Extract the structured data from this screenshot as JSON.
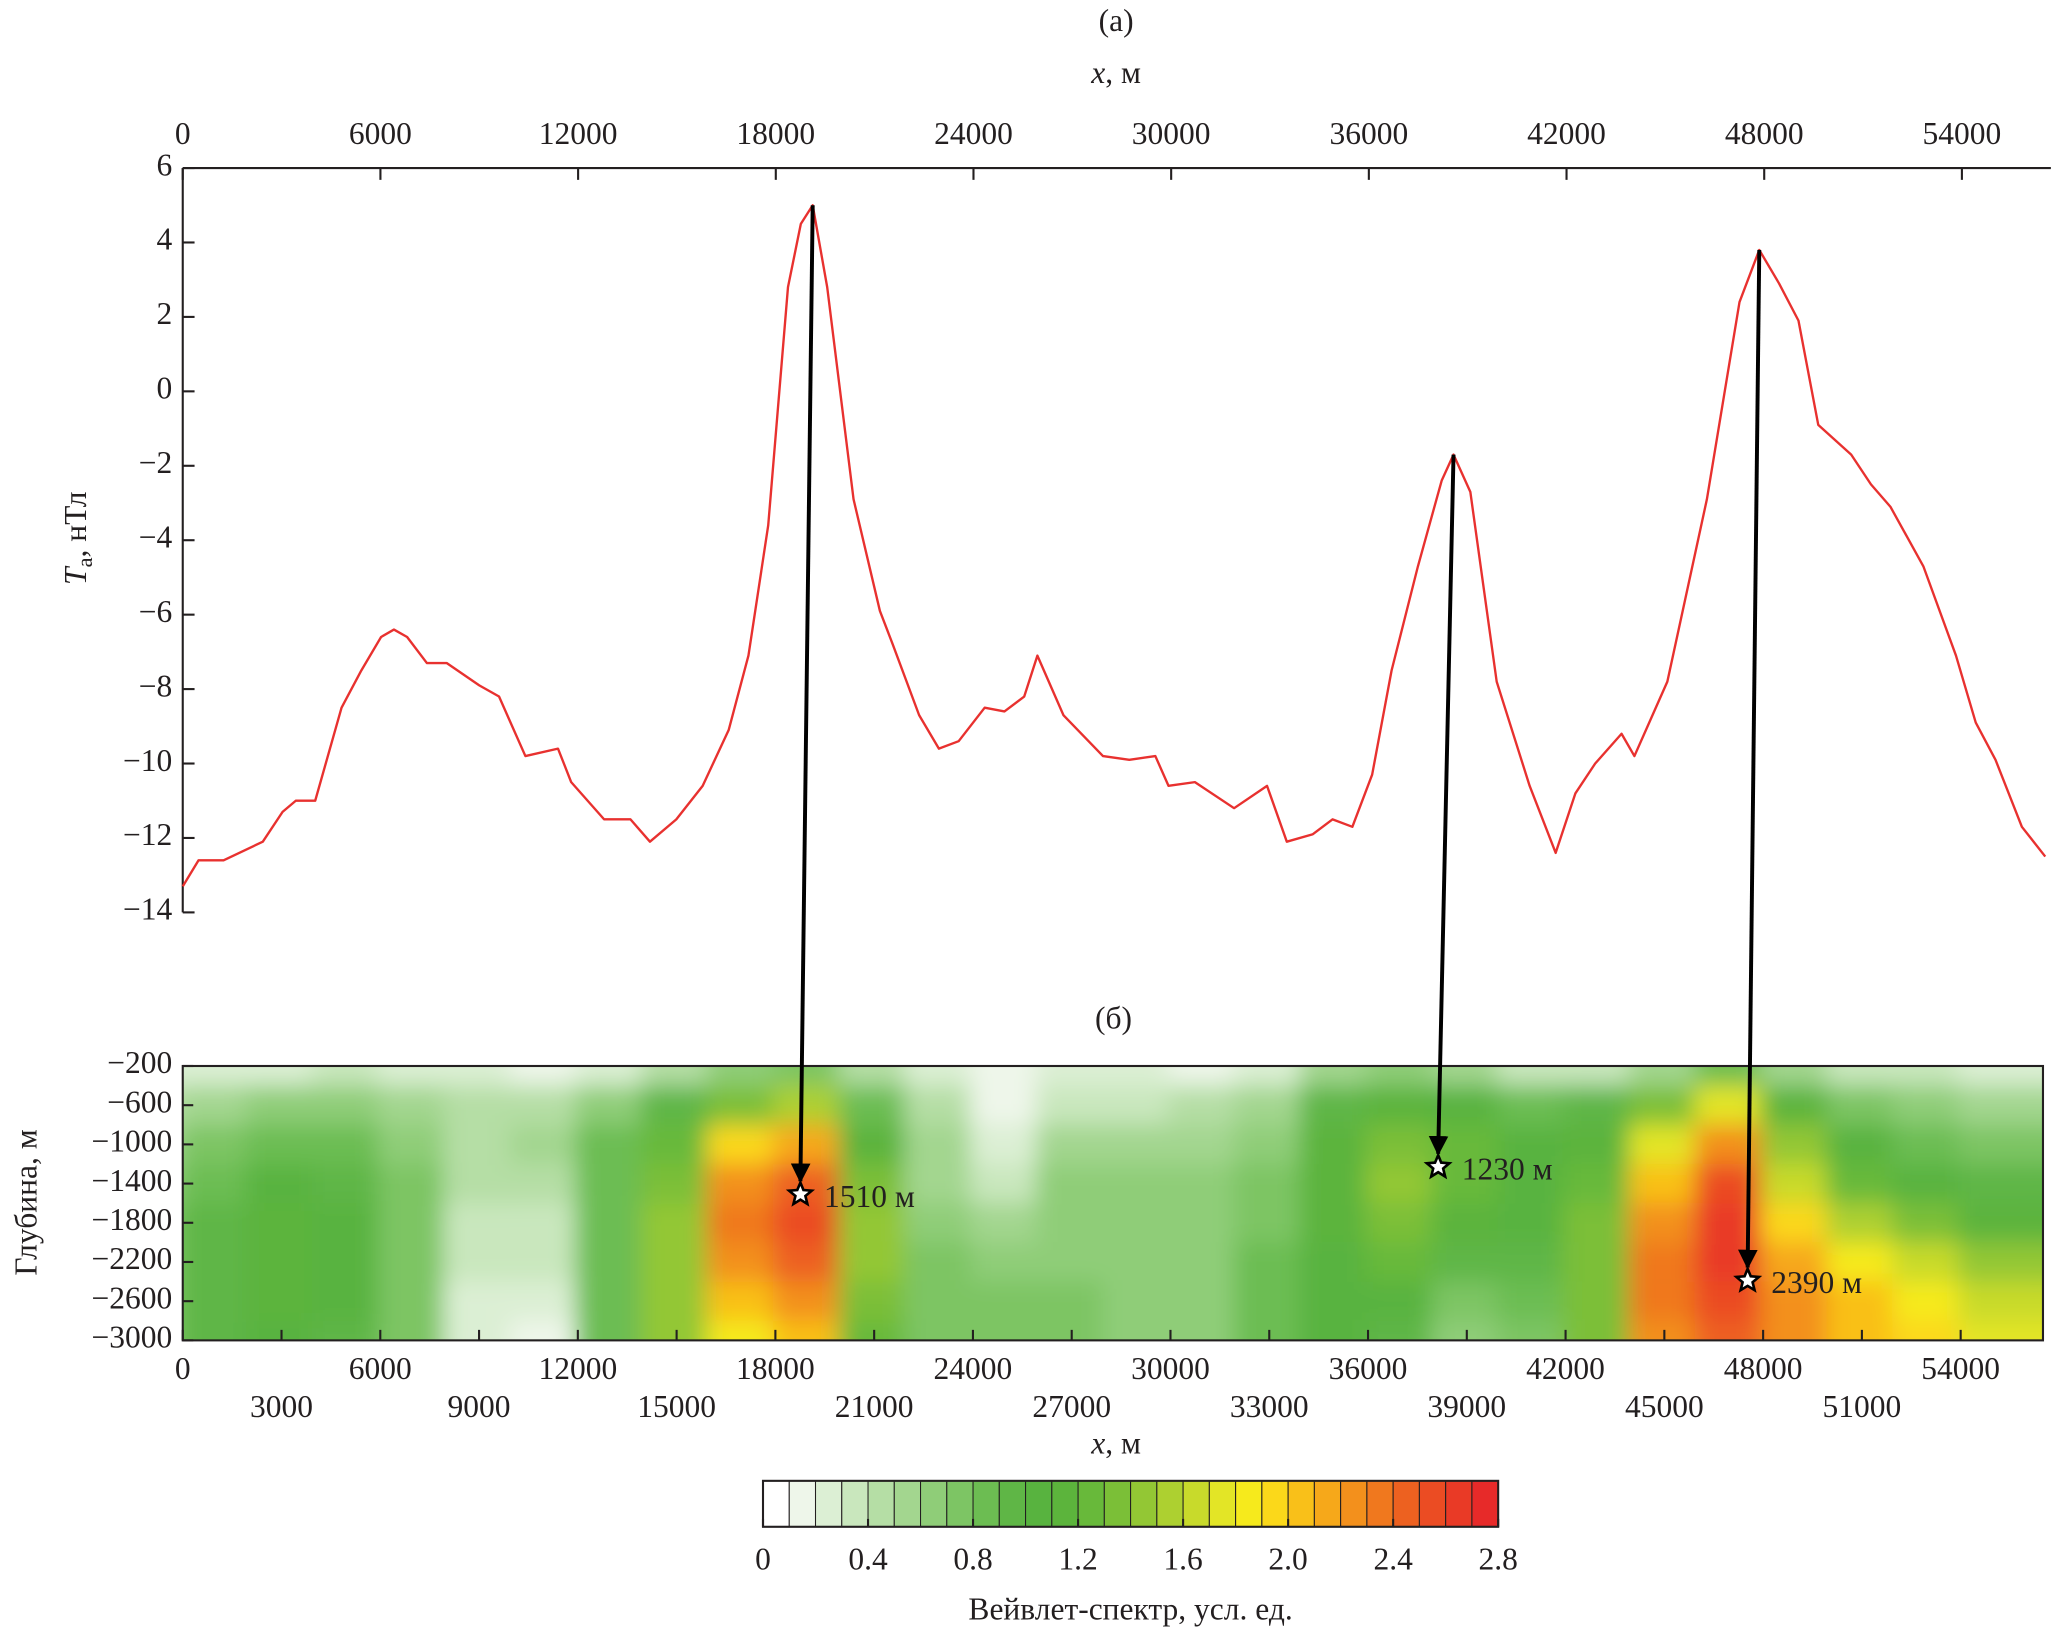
{
  "chart_data": [
    {
      "type": "line",
      "title": "(а)",
      "xlabel": [
        "x",
        ", м"
      ],
      "ylabel": [
        "T",
        "а",
        ", нТл"
      ],
      "color": "#e8312f",
      "xlim": [
        0,
        56700
      ],
      "ylim": [
        -14,
        6
      ],
      "xticks": [
        0,
        6000,
        12000,
        18000,
        24000,
        30000,
        36000,
        42000,
        48000,
        54000
      ],
      "yticks": [
        6,
        4,
        2,
        0,
        {
          "value": -2,
          "label": "−2"
        },
        {
          "value": -4,
          "label": "−4"
        },
        {
          "value": -6,
          "label": "−6"
        },
        {
          "value": -8,
          "label": "−8"
        },
        {
          "value": -10,
          "label": "−10"
        },
        {
          "value": -12,
          "label": "−12"
        },
        {
          "value": -14,
          "label": "−14"
        }
      ],
      "x": [
        0,
        480,
        1240,
        2430,
        3030,
        3430,
        4020,
        4820,
        5420,
        6020,
        6410,
        6810,
        7410,
        8010,
        9000,
        9600,
        10400,
        11390,
        11790,
        12790,
        13590,
        14180,
        14980,
        15780,
        16570,
        17170,
        17770,
        18370,
        18760,
        19120,
        19560,
        20360,
        21160,
        21550,
        22350,
        22950,
        23550,
        24340,
        24940,
        25540,
        25940,
        26730,
        27930,
        28730,
        29520,
        29920,
        30720,
        31910,
        32910,
        33510,
        34300,
        34900,
        35500,
        36100,
        36690,
        37490,
        38210,
        38570,
        39080,
        39880,
        40880,
        41670,
        42270,
        42870,
        43670,
        44060,
        45060,
        46260,
        47250,
        47850,
        48450,
        49040,
        49640,
        50640,
        51240,
        51830,
        52830,
        53820,
        54420,
        55020,
        55820,
        56530
      ],
      "values": [
        -13.3,
        -12.6,
        -12.6,
        -12.1,
        -11.3,
        -11.0,
        -11.0,
        -8.5,
        -7.5,
        -6.6,
        -6.4,
        -6.6,
        -7.3,
        -7.3,
        -7.9,
        -8.2,
        -9.8,
        -9.6,
        -10.5,
        -11.5,
        -11.5,
        -12.1,
        -11.5,
        -10.6,
        -9.1,
        -7.1,
        -3.6,
        2.8,
        4.5,
        5.0,
        2.8,
        -2.9,
        -5.9,
        -6.8,
        -8.7,
        -9.6,
        -9.4,
        -8.5,
        -8.6,
        -8.2,
        -7.1,
        -8.7,
        -9.8,
        -9.9,
        -9.8,
        -10.6,
        -10.5,
        -11.2,
        -10.6,
        -12.1,
        -11.9,
        -11.5,
        -11.7,
        -10.3,
        -7.5,
        -4.7,
        -2.4,
        -1.7,
        -2.7,
        -7.8,
        -10.6,
        -12.4,
        -10.8,
        -10.0,
        -9.2,
        -9.8,
        -7.8,
        -2.9,
        2.4,
        3.8,
        2.9,
        1.9,
        -0.9,
        -1.7,
        -2.5,
        -3.1,
        -4.7,
        -7.1,
        -8.9,
        -9.9,
        -11.7,
        -12.5
      ]
    },
    {
      "type": "heatmap",
      "title": "(б)",
      "xlabel": [
        "x",
        ", м"
      ],
      "ylabel": "Глубина, м",
      "xlim": [
        0,
        56500
      ],
      "ylim": [
        -3000,
        -200
      ],
      "xticks": [
        0,
        3000,
        6000,
        9000,
        12000,
        15000,
        18000,
        21000,
        24000,
        27000,
        30000,
        33000,
        36000,
        39000,
        42000,
        45000,
        48000,
        51000,
        54000
      ],
      "yticks": [
        {
          "value": -200,
          "label": "−200"
        },
        {
          "value": -600,
          "label": "−600"
        },
        {
          "value": -1000,
          "label": "−1000"
        },
        {
          "value": -1400,
          "label": "−1400"
        },
        {
          "value": -1800,
          "label": "−1800"
        },
        {
          "value": -2200,
          "label": "−2200"
        },
        {
          "value": -2600,
          "label": "−2600"
        },
        {
          "value": -3000,
          "label": "−3000"
        }
      ],
      "x": [
        0,
        2000,
        4000,
        6000,
        8000,
        10000,
        12000,
        14000,
        16000,
        18000,
        20000,
        22000,
        24000,
        26000,
        28000,
        30000,
        32000,
        34000,
        36000,
        38000,
        40000,
        42000,
        44000,
        46000,
        48000,
        50000,
        52000,
        54000,
        56000
      ],
      "y": [
        -200,
        -600,
        -1000,
        -1400,
        -1800,
        -2200,
        -2600,
        -3000
      ],
      "z": [
        [
          0.2,
          0.2,
          0.2,
          0.3,
          0.2,
          0.2,
          0.1,
          0.2,
          0.4,
          0.6,
          0.7,
          0.4,
          0.2,
          0.1,
          0.2,
          0.2,
          0.1,
          0.2,
          0.5,
          0.6,
          0.5,
          0.3,
          0.3,
          0.5,
          0.8,
          0.5,
          0.3,
          0.3,
          0.2
        ],
        [
          0.4,
          0.5,
          0.6,
          0.6,
          0.5,
          0.4,
          0.4,
          0.6,
          0.9,
          1.3,
          1.5,
          0.8,
          0.4,
          0.1,
          0.3,
          0.3,
          0.4,
          0.5,
          0.9,
          1.1,
          1.0,
          0.8,
          0.9,
          1.3,
          1.7,
          1.1,
          0.7,
          0.6,
          0.5
        ],
        [
          0.5,
          0.7,
          0.8,
          0.8,
          0.6,
          0.4,
          0.5,
          0.8,
          1.2,
          1.9,
          2.1,
          1.1,
          0.5,
          0.2,
          0.5,
          0.5,
          0.5,
          0.6,
          1.1,
          1.3,
          1.2,
          1.0,
          1.1,
          1.7,
          2.2,
          1.4,
          1.0,
          0.8,
          0.7
        ],
        [
          0.6,
          0.8,
          1.0,
          0.9,
          0.7,
          0.4,
          0.4,
          0.8,
          1.3,
          2.2,
          2.4,
          1.3,
          0.5,
          0.3,
          0.6,
          0.6,
          0.6,
          0.7,
          1.1,
          1.4,
          1.2,
          1.0,
          1.2,
          2.0,
          2.5,
          1.6,
          1.2,
          1.0,
          0.9
        ],
        [
          0.7,
          0.9,
          1.1,
          1.0,
          0.7,
          0.3,
          0.3,
          0.8,
          1.4,
          2.3,
          2.5,
          1.4,
          0.6,
          0.5,
          0.6,
          0.6,
          0.6,
          0.7,
          1.1,
          1.3,
          1.1,
          1.0,
          1.3,
          2.2,
          2.6,
          1.9,
          1.5,
          1.3,
          1.1
        ],
        [
          0.7,
          0.9,
          1.1,
          1.0,
          0.7,
          0.3,
          0.3,
          0.8,
          1.4,
          2.2,
          2.4,
          1.4,
          0.7,
          0.6,
          0.6,
          0.6,
          0.6,
          0.8,
          1.0,
          1.2,
          0.9,
          0.9,
          1.3,
          2.3,
          2.6,
          2.1,
          1.8,
          1.6,
          1.4
        ],
        [
          0.7,
          0.9,
          1.1,
          1.0,
          0.7,
          0.2,
          0.2,
          0.8,
          1.4,
          2.0,
          2.2,
          1.3,
          0.7,
          0.7,
          0.7,
          0.6,
          0.6,
          0.8,
          1.0,
          1.0,
          0.7,
          0.8,
          1.3,
          2.3,
          2.5,
          2.2,
          2.0,
          1.8,
          1.6
        ],
        [
          0.7,
          0.9,
          1.0,
          0.9,
          0.7,
          0.2,
          0.1,
          0.8,
          1.4,
          1.8,
          2.0,
          1.2,
          0.7,
          0.7,
          0.7,
          0.6,
          0.6,
          0.8,
          1.0,
          0.9,
          0.6,
          0.7,
          1.3,
          2.2,
          2.4,
          2.2,
          2.0,
          1.9,
          1.7
        ]
      ],
      "annotations": [
        {
          "x": 18760,
          "y": -1510,
          "label": "1510 м"
        },
        {
          "x": 38130,
          "y": -1230,
          "label": "1230 м"
        },
        {
          "x": 47530,
          "y": -2390,
          "label": "2390 м"
        }
      ],
      "colorbar": {
        "label": "Вейвлет-спектр, усл. ед.",
        "lim": [
          0,
          2.8
        ],
        "ticks": [
          0,
          0.4,
          0.8,
          1.2,
          1.6,
          {
            "value": 2,
            "label": "2.0"
          },
          2.4,
          2.8
        ],
        "colors": [
          "#ffffff",
          "#eef6ea",
          "#dcefd4",
          "#c9e7bd",
          "#b5dea5",
          "#a3d68f",
          "#8fcd78",
          "#7dc564",
          "#6cbd52",
          "#5fb646",
          "#58b33f",
          "#5cb43c",
          "#68b93a",
          "#7bbf37",
          "#93c734",
          "#add030",
          "#c8da2b",
          "#e3e526",
          "#f6ea1c",
          "#fbd81a",
          "#f9c019",
          "#f6a81a",
          "#f3901c",
          "#f0781e",
          "#ed6120",
          "#eb4c23",
          "#e93a26",
          "#e72a29"
        ]
      }
    }
  ]
}
